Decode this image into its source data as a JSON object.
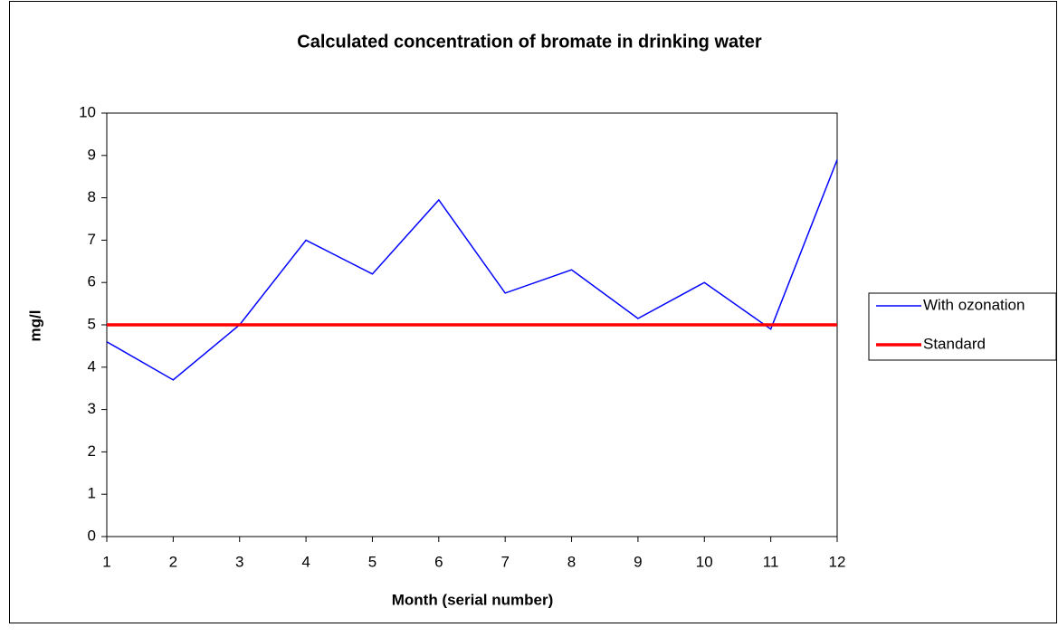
{
  "chart_data": {
    "type": "line",
    "title": "Calculated concentration of bromate in drinking water",
    "x_label": "Month (serial number)",
    "y_label": "mg/l",
    "x": [
      1,
      2,
      3,
      4,
      5,
      6,
      7,
      8,
      9,
      10,
      11,
      12
    ],
    "xlim": [
      1,
      12
    ],
    "xticks": [
      1,
      2,
      3,
      4,
      5,
      6,
      7,
      8,
      9,
      10,
      11,
      12
    ],
    "ylim": [
      0,
      10
    ],
    "yticks": [
      0,
      1,
      2,
      3,
      4,
      5,
      6,
      7,
      8,
      9,
      10
    ],
    "legend": "right",
    "series": [
      {
        "name": "With ozonation",
        "color": "#0000ff",
        "values": [
          4.6,
          3.7,
          5.0,
          7.0,
          6.2,
          7.95,
          5.75,
          6.3,
          5.15,
          6.0,
          4.9,
          8.9
        ]
      },
      {
        "name": "Standard",
        "color": "#ff0000",
        "values": [
          5,
          5,
          5,
          5,
          5,
          5,
          5,
          5,
          5,
          5,
          5,
          5
        ]
      }
    ]
  }
}
